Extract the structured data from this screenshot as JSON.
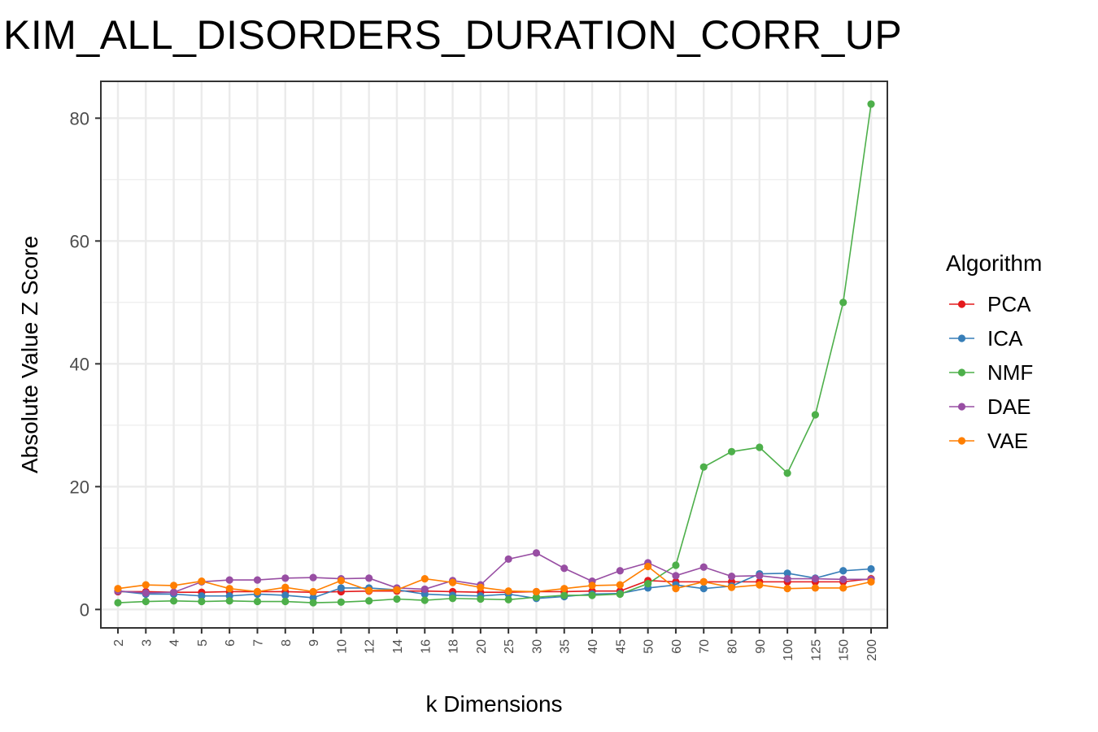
{
  "chart_data": {
    "type": "line",
    "title": "KIM_ALL_DISORDERS_DURATION_CORR_UP",
    "xlabel": "k Dimensions",
    "ylabel": "Absolute Value Z Score",
    "categories": [
      "2",
      "3",
      "4",
      "5",
      "6",
      "7",
      "8",
      "9",
      "10",
      "12",
      "14",
      "16",
      "18",
      "20",
      "25",
      "30",
      "35",
      "40",
      "45",
      "50",
      "60",
      "70",
      "80",
      "90",
      "100",
      "125",
      "150",
      "200"
    ],
    "ylim": [
      -3,
      86
    ],
    "yticks": [
      0,
      20,
      40,
      60,
      80
    ],
    "grid": true,
    "legend": {
      "title": "Algorithm",
      "position": "right"
    },
    "series": [
      {
        "name": "PCA",
        "color": "#E41A1C",
        "values": [
          2.9,
          2.9,
          2.8,
          2.8,
          2.9,
          2.9,
          2.9,
          2.8,
          2.9,
          3.0,
          3.0,
          3.0,
          2.9,
          2.8,
          2.8,
          2.9,
          2.9,
          3.0,
          3.0,
          4.7,
          4.5,
          4.5,
          4.5,
          4.5,
          4.5,
          4.5,
          4.5,
          5.0
        ]
      },
      {
        "name": "ICA",
        "color": "#377EB8",
        "values": [
          3.0,
          2.5,
          2.5,
          2.2,
          2.2,
          2.5,
          2.3,
          1.9,
          3.5,
          3.5,
          3.2,
          2.5,
          2.3,
          2.2,
          2.5,
          1.8,
          2.1,
          2.5,
          2.6,
          3.5,
          4.0,
          3.4,
          3.8,
          5.8,
          5.9,
          5.1,
          6.3,
          6.6
        ]
      },
      {
        "name": "NMF",
        "color": "#4DAF4A",
        "values": [
          1.1,
          1.3,
          1.4,
          1.3,
          1.4,
          1.3,
          1.3,
          1.1,
          1.2,
          1.4,
          1.7,
          1.5,
          1.8,
          1.7,
          1.6,
          2.0,
          2.3,
          2.3,
          2.5,
          4.2,
          7.2,
          23.2,
          25.7,
          26.4,
          22.2,
          31.7,
          50.0,
          82.3
        ]
      },
      {
        "name": "DAE",
        "color": "#984EA3",
        "values": [
          3.0,
          2.7,
          2.8,
          4.5,
          4.8,
          4.8,
          5.1,
          5.2,
          5.0,
          5.1,
          3.5,
          3.3,
          4.7,
          4.0,
          8.2,
          9.2,
          6.7,
          4.6,
          6.3,
          7.6,
          5.5,
          6.9,
          5.4,
          5.5,
          5.0,
          5.0,
          4.9,
          4.9
        ]
      },
      {
        "name": "VAE",
        "color": "#FF7F00",
        "values": [
          3.4,
          4.0,
          3.9,
          4.6,
          3.4,
          2.9,
          3.6,
          2.9,
          4.7,
          3.1,
          3.2,
          5.0,
          4.4,
          3.6,
          3.0,
          2.9,
          3.4,
          3.9,
          4.0,
          7.0,
          3.4,
          4.5,
          3.6,
          4.0,
          3.4,
          3.5,
          3.5,
          4.5
        ]
      }
    ]
  }
}
